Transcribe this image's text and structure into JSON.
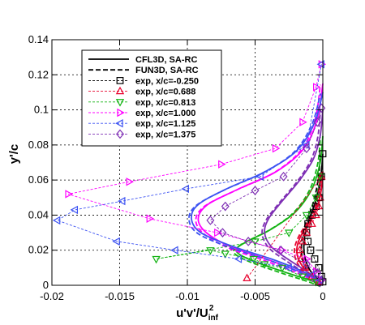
{
  "chart_data": {
    "type": "line",
    "xlabel_parts": {
      "base": "u'v'/U",
      "sub": "inf",
      "sup": "2"
    },
    "ylabel": "y'/c",
    "xlim": [
      -0.02,
      0
    ],
    "ylim": [
      0,
      0.14
    ],
    "x_ticks": [
      -0.02,
      -0.015,
      -0.01,
      -0.005,
      0
    ],
    "x_tick_labels": [
      "-0.02",
      "-0.015",
      "-0.01",
      "-0.005",
      "0"
    ],
    "y_ticks": [
      0,
      0.02,
      0.04,
      0.06,
      0.08,
      0.1,
      0.12,
      0.14
    ],
    "y_tick_labels": [
      "0",
      "0.02",
      "0.04",
      "0.06",
      "0.08",
      "0.1",
      "0.12",
      "0.14"
    ],
    "grid": true,
    "legend_position": "top-left",
    "series": [
      {
        "name": "exp, x/c=-0.250",
        "color": "#000000",
        "marker": "square",
        "x": [
          0,
          -0.0001,
          -0.0003,
          -0.0006,
          -0.0009,
          -0.0011,
          -0.0012,
          -0.0011,
          -0.0008,
          -0.0005,
          -0.0003,
          -0.0001,
          0
        ],
        "y": [
          0.002,
          0.005,
          0.01,
          0.015,
          0.02,
          0.025,
          0.03,
          0.035,
          0.04,
          0.045,
          0.05,
          0.062,
          0.075
        ]
      },
      {
        "name": "exp, x/c=0.688",
        "color": "#e8002c",
        "marker": "triangle-up",
        "x": [
          -0.0003,
          -0.0008,
          -0.0013,
          -0.0016,
          -0.0017,
          -0.0015,
          -0.0012,
          -0.0008,
          -0.0005,
          -0.0003,
          -0.0002,
          -0.0001,
          -0.0056
        ],
        "y": [
          0.002,
          0.005,
          0.01,
          0.015,
          0.02,
          0.025,
          0.03,
          0.035,
          0.04,
          0.045,
          0.05,
          0.062,
          0.004
        ]
      },
      {
        "name": "exp, x/c=0.813",
        "color": "#13b313",
        "marker": "triangle-down",
        "x": [
          -0.0005,
          -0.0015,
          -0.003,
          -0.0043,
          -0.0051,
          -0.0072,
          -0.0083,
          -0.0123,
          -0.005,
          -0.0025,
          -0.0012,
          -0.0005,
          -0.0002
        ],
        "y": [
          0.002,
          0.005,
          0.01,
          0.012,
          0.015,
          0.018,
          0.02,
          0.015,
          0.025,
          0.03,
          0.04,
          0.05,
          0.062
        ]
      },
      {
        "name": "exp, x/c=1.000",
        "color": "#ff00ff",
        "marker": "triangle-right",
        "x": [
          -0.0001,
          -0.0005,
          -0.0012,
          -0.003,
          -0.0078,
          -0.0128,
          -0.0188,
          -0.0143,
          -0.0075,
          -0.0035,
          -0.0015,
          -0.0005,
          -0.0001
        ],
        "y": [
          0.003,
          0.008,
          0.015,
          0.02,
          0.03,
          0.038,
          0.052,
          0.059,
          0.069,
          0.078,
          0.093,
          0.113,
          0.126
        ]
      },
      {
        "name": "exp, x/c=1.125",
        "color": "#3c52f2",
        "marker": "triangle-left",
        "x": [
          -0.0002,
          -0.0008,
          -0.0025,
          -0.0062,
          -0.0109,
          -0.0152,
          -0.0196,
          -0.0183,
          -0.0148,
          -0.0101,
          -0.0046,
          -0.0012,
          -0.0001
        ],
        "y": [
          0.003,
          0.006,
          0.01,
          0.015,
          0.02,
          0.025,
          0.037,
          0.043,
          0.048,
          0.055,
          0.062,
          0.08,
          0.126
        ]
      },
      {
        "name": "exp, x/c=1.375",
        "color": "#7e2eb4",
        "marker": "diamond",
        "x": [
          -0.0001,
          -0.0004,
          -0.0012,
          -0.0031,
          -0.0055,
          -0.0074,
          -0.0083,
          -0.0072,
          -0.005,
          -0.0029,
          -0.0012,
          -0.0004,
          -0.0001
        ],
        "y": [
          0.003,
          0.007,
          0.012,
          0.02,
          0.025,
          0.03,
          0.037,
          0.045,
          0.054,
          0.062,
          0.078,
          0.093,
          0.101
        ]
      }
    ],
    "legend": {
      "entries": [
        {
          "label": "CFL3D, SA-RC",
          "style": "solid",
          "color": "#000000"
        },
        {
          "label": "FUN3D, SA-RC",
          "style": "dashed",
          "color": "#000000"
        },
        {
          "label": "exp, x/c=-0.250",
          "series": 0
        },
        {
          "label": "exp, x/c=0.688",
          "series": 1
        },
        {
          "label": "exp, x/c=0.813",
          "series": 2
        },
        {
          "label": "exp, x/c=1.000",
          "series": 3
        },
        {
          "label": "exp, x/c=1.125",
          "series": 4
        },
        {
          "label": "exp, x/c=1.375",
          "series": 5
        }
      ]
    },
    "cfd_curves": [
      {
        "color": "#000000",
        "x": [
          0,
          -0.0003,
          -0.0009,
          -0.0013,
          -0.0014,
          -0.0013,
          -0.001,
          -0.0006,
          -0.0003,
          -0.0001,
          0
        ],
        "y": [
          0,
          0.003,
          0.008,
          0.015,
          0.022,
          0.03,
          0.038,
          0.046,
          0.055,
          0.065,
          0.075
        ]
      },
      {
        "color": "#e8002c",
        "x": [
          0,
          -0.0004,
          -0.0012,
          -0.0018,
          -0.0019,
          -0.0015,
          -0.0008,
          -0.0004,
          -0.0001,
          0
        ],
        "y": [
          0,
          0.003,
          0.008,
          0.015,
          0.022,
          0.03,
          0.038,
          0.045,
          0.055,
          0.065
        ]
      },
      {
        "color": "#13b313",
        "x": [
          0,
          -0.001,
          -0.003,
          -0.0055,
          -0.0064,
          -0.0056,
          -0.0038,
          -0.002,
          -0.0008,
          -0.0002,
          0
        ],
        "y": [
          0,
          0.003,
          0.008,
          0.015,
          0.02,
          0.025,
          0.032,
          0.042,
          0.055,
          0.07,
          0.085
        ]
      },
      {
        "color": "#ff00ff",
        "x": [
          0,
          -0.0005,
          -0.0018,
          -0.0042,
          -0.0068,
          -0.0086,
          -0.0092,
          -0.0085,
          -0.0062,
          -0.0034,
          -0.0014,
          -0.0004,
          0
        ],
        "y": [
          0,
          0.003,
          0.008,
          0.015,
          0.022,
          0.03,
          0.038,
          0.046,
          0.055,
          0.065,
          0.078,
          0.095,
          0.115
        ]
      },
      {
        "color": "#3c52f2",
        "x": [
          0,
          -0.0004,
          -0.0015,
          -0.0038,
          -0.0066,
          -0.009,
          -0.0097,
          -0.0092,
          -0.0071,
          -0.0042,
          -0.0019,
          -0.0006,
          0
        ],
        "y": [
          0,
          0.003,
          0.008,
          0.015,
          0.022,
          0.03,
          0.038,
          0.046,
          0.055,
          0.065,
          0.077,
          0.093,
          0.11
        ]
      },
      {
        "color": "#7e2eb4",
        "x": [
          0,
          -0.0004,
          -0.0012,
          -0.0026,
          -0.0038,
          -0.0043,
          -0.004,
          -0.003,
          -0.0017,
          -0.0007,
          -0.0002,
          0
        ],
        "y": [
          0,
          0.003,
          0.008,
          0.015,
          0.022,
          0.03,
          0.038,
          0.048,
          0.06,
          0.072,
          0.085,
          0.1
        ]
      }
    ]
  }
}
